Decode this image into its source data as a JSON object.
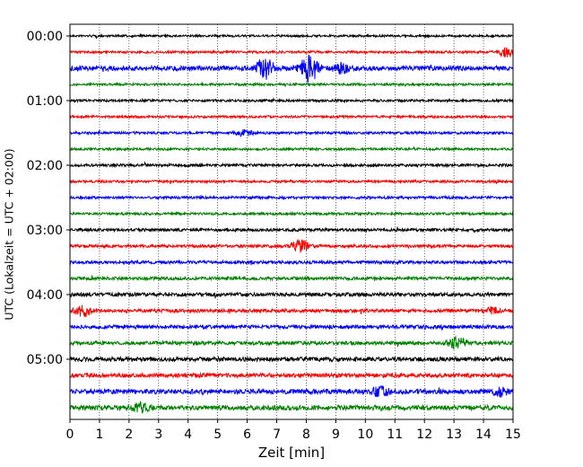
{
  "chart_data": {
    "type": "line",
    "title": "",
    "xlabel": "Zeit  [min]",
    "ylabel": "UTC (Lokalzeit = UTC + 02:00)",
    "xlim": [
      0,
      15
    ],
    "x_ticks": [
      "0",
      "1",
      "2",
      "3",
      "4",
      "5",
      "6",
      "7",
      "8",
      "9",
      "10",
      "11",
      "12",
      "13",
      "14",
      "15"
    ],
    "y_ticks": [
      "00:00",
      "01:00",
      "02:00",
      "03:00",
      "04:00",
      "05:00"
    ],
    "grid": "vertical dotted at each minute",
    "trace_interval_minutes": 15,
    "trace_colors_cycle": [
      "#000000",
      "#ff0000",
      "#0000ff",
      "#008000"
    ],
    "traces": [
      {
        "start": "00:00",
        "color": "#000000",
        "amplitude": 1.2,
        "events": []
      },
      {
        "start": "00:15",
        "color": "#ff0000",
        "amplitude": 1.3,
        "events": [
          {
            "t": 14.8,
            "amp": 5
          }
        ]
      },
      {
        "start": "00:30",
        "color": "#0000ff",
        "amplitude": 2.6,
        "events": [
          {
            "t": 6.6,
            "amp": 11
          },
          {
            "t": 8.1,
            "amp": 16
          },
          {
            "t": 9.2,
            "amp": 5
          }
        ]
      },
      {
        "start": "00:45",
        "color": "#008000",
        "amplitude": 1.3,
        "events": []
      },
      {
        "start": "01:00",
        "color": "#000000",
        "amplitude": 1.3,
        "events": []
      },
      {
        "start": "01:15",
        "color": "#ff0000",
        "amplitude": 1.3,
        "events": []
      },
      {
        "start": "01:30",
        "color": "#0000ff",
        "amplitude": 1.4,
        "events": [
          {
            "t": 5.9,
            "amp": 3
          }
        ]
      },
      {
        "start": "01:45",
        "color": "#008000",
        "amplitude": 1.3,
        "events": []
      },
      {
        "start": "02:00",
        "color": "#000000",
        "amplitude": 1.5,
        "events": []
      },
      {
        "start": "02:15",
        "color": "#ff0000",
        "amplitude": 1.4,
        "events": []
      },
      {
        "start": "02:30",
        "color": "#0000ff",
        "amplitude": 1.4,
        "events": []
      },
      {
        "start": "02:45",
        "color": "#008000",
        "amplitude": 1.4,
        "events": []
      },
      {
        "start": "03:00",
        "color": "#000000",
        "amplitude": 1.6,
        "events": []
      },
      {
        "start": "03:15",
        "color": "#ff0000",
        "amplitude": 1.6,
        "events": [
          {
            "t": 7.8,
            "amp": 6
          }
        ]
      },
      {
        "start": "03:30",
        "color": "#0000ff",
        "amplitude": 1.7,
        "events": []
      },
      {
        "start": "03:45",
        "color": "#008000",
        "amplitude": 1.7,
        "events": []
      },
      {
        "start": "04:00",
        "color": "#000000",
        "amplitude": 2.0,
        "events": []
      },
      {
        "start": "04:15",
        "color": "#ff0000",
        "amplitude": 1.9,
        "events": [
          {
            "t": 0.45,
            "amp": 6
          },
          {
            "t": 14.3,
            "amp": 3
          }
        ]
      },
      {
        "start": "04:30",
        "color": "#0000ff",
        "amplitude": 2.0,
        "events": []
      },
      {
        "start": "04:45",
        "color": "#008000",
        "amplitude": 2.0,
        "events": [
          {
            "t": 13.1,
            "amp": 6
          }
        ]
      },
      {
        "start": "05:00",
        "color": "#000000",
        "amplitude": 2.3,
        "events": []
      },
      {
        "start": "05:15",
        "color": "#ff0000",
        "amplitude": 2.3,
        "events": []
      },
      {
        "start": "05:30",
        "color": "#0000ff",
        "amplitude": 2.6,
        "events": [
          {
            "t": 10.5,
            "amp": 5
          },
          {
            "t": 14.6,
            "amp": 4
          }
        ]
      },
      {
        "start": "05:45",
        "color": "#008000",
        "amplitude": 2.6,
        "events": [
          {
            "t": 2.4,
            "amp": 4
          }
        ]
      }
    ]
  }
}
